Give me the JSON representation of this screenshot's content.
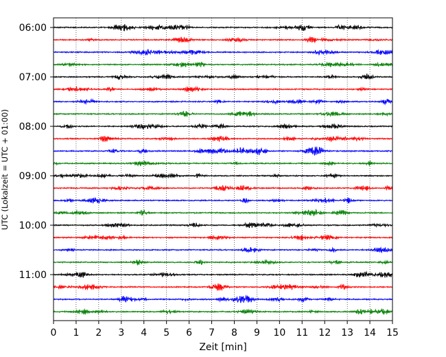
{
  "chart_data": {
    "type": "line",
    "title": "",
    "xlabel": "Zeit  [min]",
    "ylabel": "UTC (Lokalzeit = UTC + 01:00)",
    "xlim": [
      0,
      15
    ],
    "x_ticks": [
      "0",
      "1",
      "2",
      "3",
      "4",
      "5",
      "6",
      "7",
      "8",
      "9",
      "10",
      "11",
      "12",
      "13",
      "14",
      "15"
    ],
    "y_tick_labels": [
      "06:00",
      "07:00",
      "08:00",
      "09:00",
      "10:00",
      "11:00"
    ],
    "trace_interval_minutes": 15,
    "trace_start": "06:00",
    "trace_count": 24,
    "trace_colors": [
      "#000000",
      "#ff0000",
      "#0000ff",
      "#008000"
    ],
    "grid": {
      "x": true,
      "y": false,
      "style": "dotted"
    }
  }
}
